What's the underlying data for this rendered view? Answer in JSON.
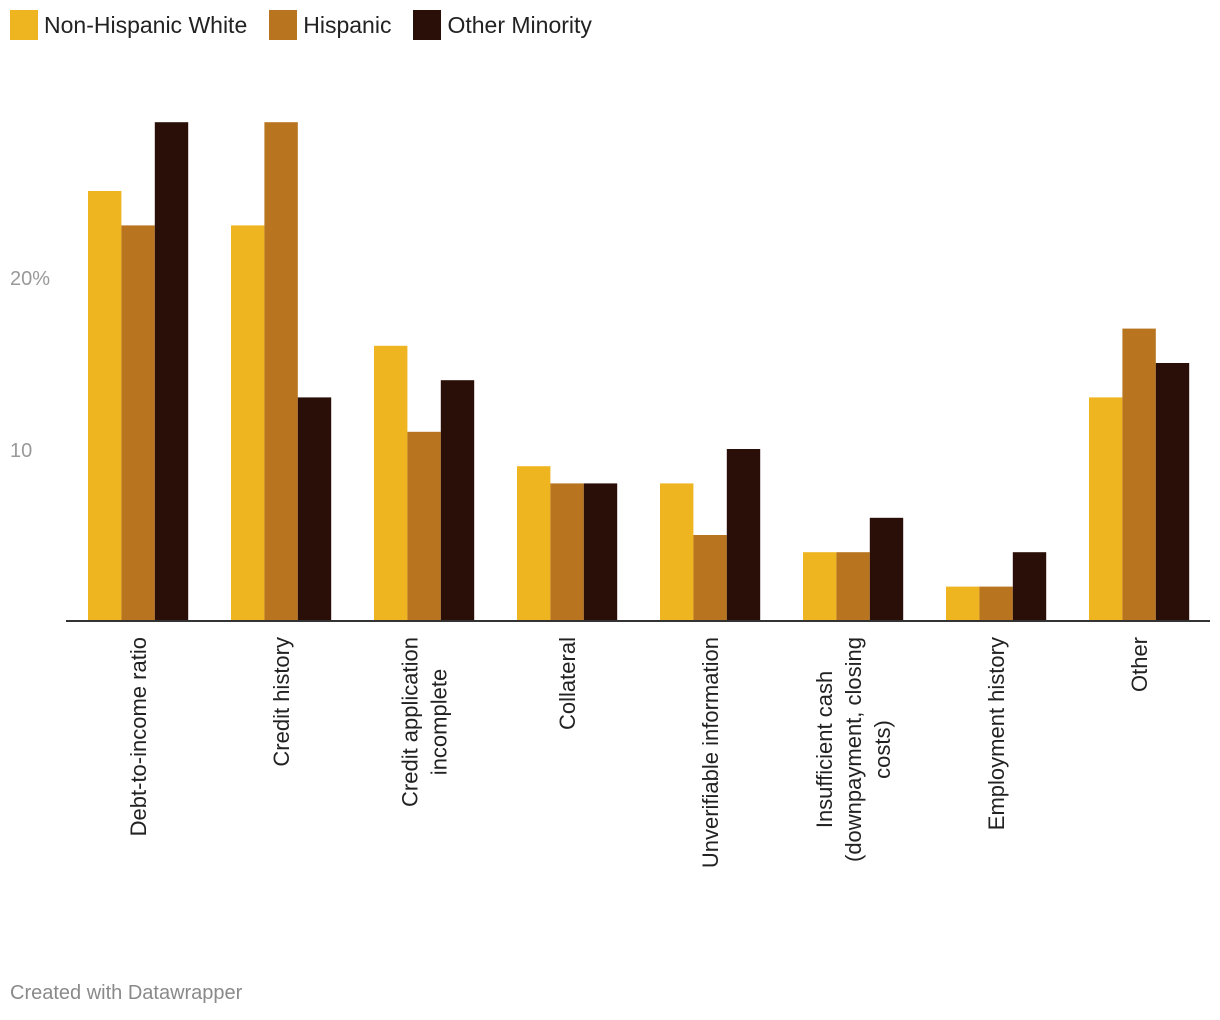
{
  "chart_data": {
    "type": "bar",
    "title": "",
    "xlabel": "",
    "ylabel": "",
    "ylim": [
      0,
      29
    ],
    "yticks": [
      {
        "value": 10,
        "label": "10"
      },
      {
        "value": 20,
        "label": "20%"
      }
    ],
    "categories": [
      "Debt-to-income ratio",
      "Credit history",
      "Credit application incomplete",
      "Collateral",
      "Unverifiable information",
      "Insufficient cash (downpayment, closing costs)",
      "Employment history",
      "Other"
    ],
    "category_lines": [
      [
        "Debt-to-income ratio"
      ],
      [
        "Credit history"
      ],
      [
        "Credit application",
        "incomplete"
      ],
      [
        "Collateral"
      ],
      [
        "Unverifiable information"
      ],
      [
        "Insufficient cash",
        "(downpayment, closing",
        "costs)"
      ],
      [
        "Employment history"
      ],
      [
        "Other"
      ]
    ],
    "series": [
      {
        "name": "Non-Hispanic White",
        "color": "#efb520",
        "values": [
          25,
          23,
          16,
          9,
          8,
          4,
          2,
          13
        ]
      },
      {
        "name": "Hispanic",
        "color": "#b8741f",
        "values": [
          23,
          29,
          11,
          8,
          5,
          4,
          2,
          17
        ]
      },
      {
        "name": "Other Minority",
        "color": "#2a0e08",
        "values": [
          29,
          13,
          14,
          8,
          10,
          6,
          4,
          15
        ]
      }
    ],
    "legend_position": "top-left",
    "grid": false
  },
  "footer": {
    "credit": "Created with Datawrapper"
  }
}
